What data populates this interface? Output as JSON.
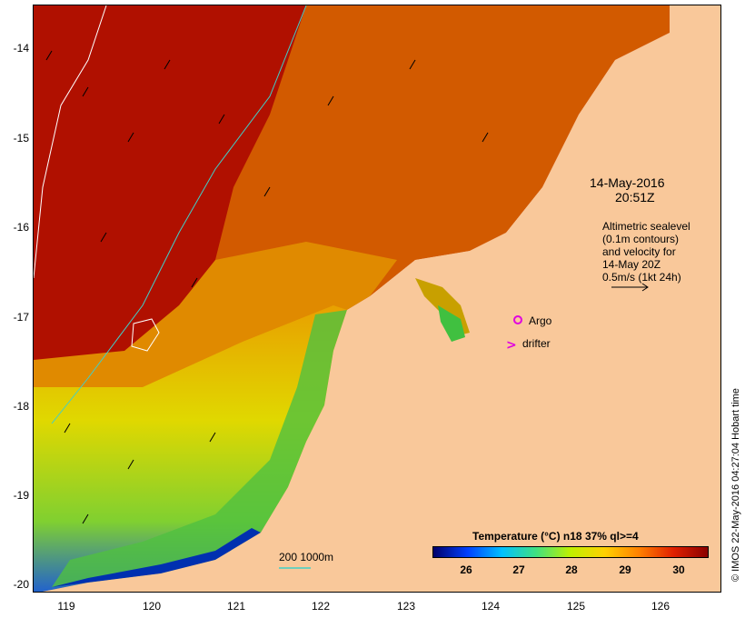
{
  "map": {
    "lat_labels": [
      "-14",
      "-15",
      "-16",
      "-17",
      "-18",
      "-19",
      "-20"
    ],
    "lon_labels": [
      "119",
      "120",
      "121",
      "122",
      "123",
      "124",
      "125",
      "126"
    ],
    "date_line1": "14-May-2016",
    "date_line2": "20:51Z",
    "altimetry_note": [
      "Altimetric sealevel",
      "(0.1m contours)",
      "and velocity for",
      "14-May 20Z",
      "0.5m/s (1kt 24h)"
    ],
    "legend_argo": "Argo",
    "legend_drifter": "drifter",
    "depth_legend": "200  1000m",
    "colorbar_title": "Temperature (°C) n18 37% ql>=4",
    "colorbar_ticks": [
      "26",
      "27",
      "28",
      "29",
      "30"
    ],
    "credit": "© IMOS 22-May-2016 04:27:04 Hobart time",
    "colors": {
      "land": "#f9c89a",
      "sst_hot": "#a00000",
      "sst_orange": "#e07a00",
      "sst_yellow": "#e8d800",
      "sst_green": "#40c040",
      "sst_blue": "#0020a0",
      "contour_200m": "#40d0c8",
      "contour_1000m": "#ffffff",
      "argo": "#e000e0"
    }
  }
}
